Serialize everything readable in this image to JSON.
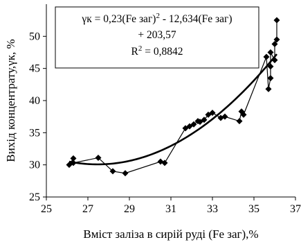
{
  "chart_data": {
    "type": "scatter",
    "xlabel": "Вміст заліза в сирій руді (Fe заг),%",
    "ylabel": "Вихід концентрату,γк, %",
    "xlim": [
      25,
      37
    ],
    "ylim": [
      25,
      55
    ],
    "x_ticks": [
      25,
      27,
      29,
      31,
      33,
      35,
      37
    ],
    "y_ticks": [
      25,
      30,
      35,
      40,
      45,
      50
    ],
    "grid": false,
    "series": [
      {
        "marker": "diamond",
        "connected": true,
        "color": "#000000",
        "points": [
          [
            26.1,
            30.0
          ],
          [
            26.3,
            31.0
          ],
          [
            26.3,
            30.3
          ],
          [
            27.5,
            31.1
          ],
          [
            28.2,
            29.0
          ],
          [
            28.8,
            28.7
          ],
          [
            30.5,
            30.5
          ],
          [
            30.7,
            30.3
          ],
          [
            31.7,
            35.7
          ],
          [
            31.9,
            36.0
          ],
          [
            32.1,
            36.3
          ],
          [
            32.3,
            36.8
          ],
          [
            32.4,
            36.7
          ],
          [
            32.6,
            37.0
          ],
          [
            32.8,
            37.8
          ],
          [
            33.0,
            38.1
          ],
          [
            33.4,
            37.3
          ],
          [
            33.6,
            37.5
          ],
          [
            34.3,
            36.8
          ],
          [
            34.4,
            38.3
          ],
          [
            34.5,
            37.8
          ],
          [
            35.6,
            46.8
          ],
          [
            35.7,
            41.8
          ],
          [
            35.8,
            43.5
          ],
          [
            35.8,
            45.3
          ],
          [
            35.8,
            47.5
          ],
          [
            36.0,
            46.3
          ],
          [
            36.0,
            48.8
          ],
          [
            36.1,
            49.5
          ],
          [
            36.1,
            52.5
          ]
        ]
      }
    ],
    "trendline": {
      "type": "polynomial",
      "order": 2,
      "color": "#000000",
      "coefficients": [
        0.23,
        -12.634,
        203.57
      ],
      "x_range": [
        26.1,
        36.1
      ]
    },
    "annotation": {
      "line1_prefix": "γк = 0,23(Fe заг)",
      "line1_sup": "2",
      "line1_suffix": " - 12,634(Fe заг)",
      "line2": "+ 203,57",
      "line3_prefix": "R",
      "line3_sup": "2",
      "line3_suffix": " = 0,8842"
    }
  }
}
